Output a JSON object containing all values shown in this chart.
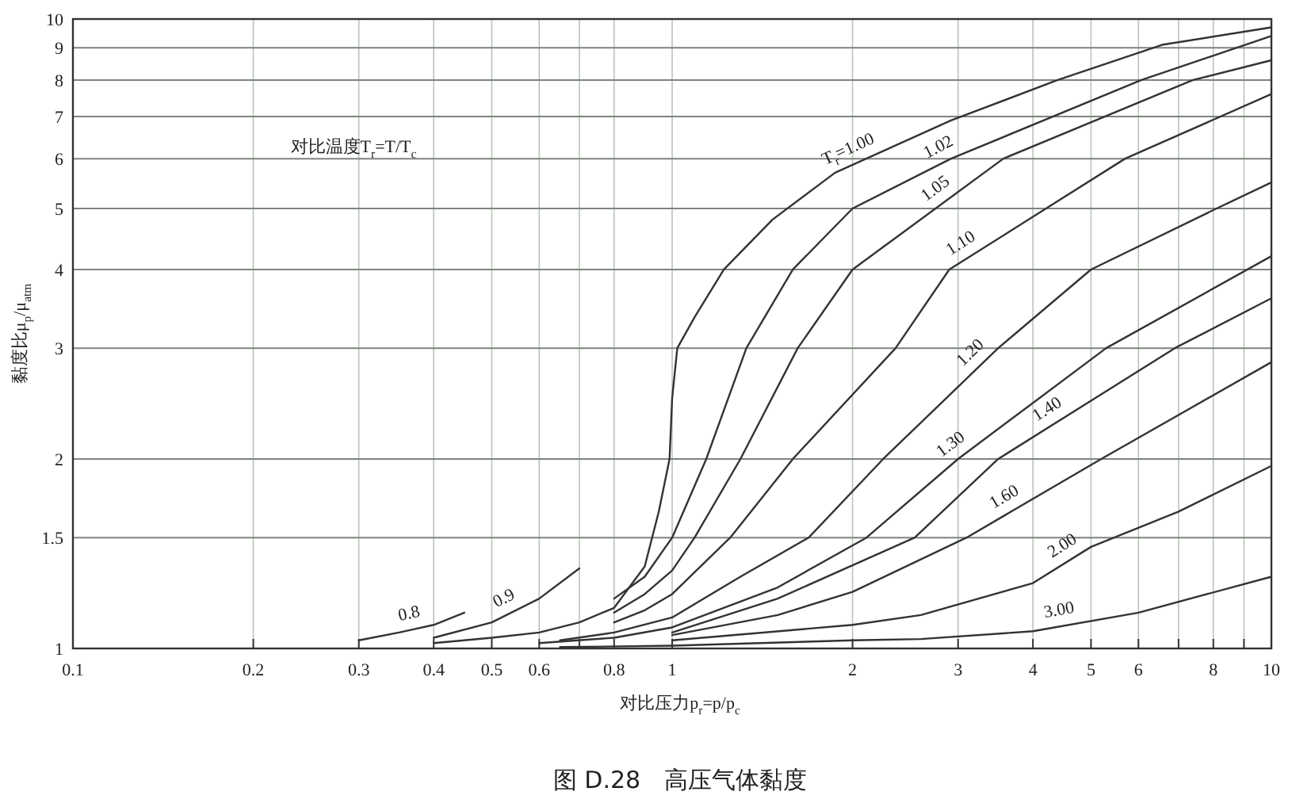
{
  "chart_data": {
    "type": "line",
    "title": "图 D.28　高压气体黏度",
    "xlabel": "对比压力p$_{r}$=p/p$_{c}$",
    "ylabel": "黏度比μ$_{p}$/μ$_{atm}$",
    "annotations": [
      "对比温度T$_{r}$=T/T$_{c}$"
    ],
    "log": "xy",
    "grid": true,
    "xlim": [
      0.1,
      10
    ],
    "ylim": [
      1,
      10
    ],
    "xticks": [
      0.1,
      0.2,
      0.3,
      0.4,
      0.5,
      0.6,
      {
        "value": 0.7,
        "label": null
      },
      0.8,
      1,
      2,
      3,
      4,
      5,
      6,
      {
        "value": 7,
        "label": null
      },
      8,
      {
        "value": 9,
        "label": null
      },
      10
    ],
    "yticks": [
      1,
      1.5,
      2,
      3,
      4,
      5,
      6,
      7,
      8,
      9,
      10
    ],
    "series": [
      {
        "name": "0.8",
        "color": "#333333",
        "x": [
          0.3,
          0.35,
          0.4,
          0.45
        ],
        "values": [
          1.03,
          1.06,
          1.09,
          1.14
        ]
      },
      {
        "name": "0.9",
        "color": "#333333",
        "x": [
          0.4,
          0.5,
          0.6,
          0.7
        ],
        "values": [
          1.04,
          1.1,
          1.2,
          1.34
        ]
      },
      {
        "name": "T$_{r}$=1.00",
        "color": "#333333",
        "x": [
          0.4,
          0.5,
          0.6,
          0.7,
          0.8,
          0.9,
          0.95,
          0.99,
          1.0,
          1.02,
          1.09,
          1.22,
          1.47,
          1.87,
          2.92,
          4.4,
          6.57,
          10
        ],
        "values": [
          1.02,
          1.04,
          1.06,
          1.1,
          1.16,
          1.35,
          1.65,
          2.0,
          2.5,
          3.0,
          3.36,
          4.0,
          4.8,
          5.7,
          6.9,
          8.0,
          9.1,
          9.7
        ]
      },
      {
        "name": "1.02",
        "color": "#333333",
        "x": [
          0.8,
          0.9,
          1.0,
          1.14,
          1.33,
          1.59,
          2.0,
          2.92,
          6.07,
          10
        ],
        "values": [
          1.2,
          1.3,
          1.5,
          2.0,
          3.0,
          4.0,
          5.0,
          6.0,
          8.0,
          9.4
        ]
      },
      {
        "name": "1.05",
        "color": "#333333",
        "x": [
          0.8,
          0.9,
          1.0,
          1.09,
          1.3,
          1.62,
          2.0,
          3.57,
          7.4,
          10
        ],
        "values": [
          1.14,
          1.22,
          1.33,
          1.5,
          2.0,
          3.0,
          4.0,
          6.0,
          8.0,
          8.6
        ]
      },
      {
        "name": "1.10",
        "color": "#333333",
        "x": [
          0.8,
          0.9,
          1.0,
          1.25,
          1.59,
          2.36,
          2.9,
          5.7,
          10
        ],
        "values": [
          1.1,
          1.15,
          1.22,
          1.5,
          2.0,
          3.0,
          4.0,
          6.0,
          7.6
        ]
      },
      {
        "name": "1.20",
        "color": "#333333",
        "x": [
          0.65,
          0.8,
          1.0,
          1.3,
          1.69,
          2.25,
          3.5,
          5.0,
          8.1,
          10
        ],
        "values": [
          1.03,
          1.06,
          1.12,
          1.3,
          1.5,
          2.0,
          3.0,
          4.0,
          5.0,
          5.5
        ]
      },
      {
        "name": "1.30",
        "color": "#333333",
        "x": [
          0.6,
          0.8,
          1.0,
          1.5,
          2.11,
          3.0,
          5.3,
          10
        ],
        "values": [
          1.02,
          1.04,
          1.08,
          1.25,
          1.5,
          2.0,
          3.0,
          4.2
        ]
      },
      {
        "name": "1.40",
        "color": "#333333",
        "x": [
          1.0,
          1.5,
          2.54,
          3.5,
          6.9,
          10
        ],
        "values": [
          1.06,
          1.2,
          1.5,
          2.0,
          3.0,
          3.6
        ]
      },
      {
        "name": "1.60",
        "color": "#333333",
        "x": [
          1.0,
          1.5,
          2.0,
          3.1,
          5.2,
          10
        ],
        "values": [
          1.05,
          1.13,
          1.23,
          1.5,
          2.0,
          2.85
        ]
      },
      {
        "name": "2.00",
        "color": "#333333",
        "x": [
          1.0,
          2.0,
          2.6,
          4.0,
          5.0,
          7.0,
          10
        ],
        "values": [
          1.03,
          1.09,
          1.13,
          1.27,
          1.45,
          1.65,
          1.95
        ]
      },
      {
        "name": "3.00",
        "color": "#333333",
        "x": [
          0.65,
          1.0,
          2.0,
          2.6,
          4.0,
          6.0,
          10
        ],
        "values": [
          1.005,
          1.01,
          1.03,
          1.035,
          1.065,
          1.14,
          1.3
        ]
      }
    ]
  }
}
